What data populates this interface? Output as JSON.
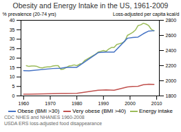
{
  "chart_data": {
    "type": "line",
    "title": "Obesity and Energy Intake in the US, 1961-2009",
    "ylabel": "% prevalence (20-74 yrs)",
    "y2label": "Loss-adjusted per capita kcal/d",
    "xlim": [
      1959,
      2011
    ],
    "xticks": [
      1960,
      1970,
      1980,
      1990,
      2000,
      2010
    ],
    "ylim": [
      0,
      40
    ],
    "yticks": [
      0,
      5,
      10,
      15,
      20,
      25,
      30,
      35,
      40
    ],
    "y2lim": [
      1800,
      2800
    ],
    "y2ticks": [
      1800,
      2000,
      2200,
      2400,
      2600,
      2800
    ],
    "legend": "bottom",
    "footnotes": [
      "CDC NHES and NHANES 1960-2008",
      "USDA ERS loss-adjusted food disappearance"
    ],
    "series": [
      {
        "name": "Obese (BMI >30)",
        "color": "#4472C4",
        "x": [
          1960,
          1962,
          1971,
          1974,
          1976,
          1980,
          1988,
          1991,
          1994,
          1999,
          2001,
          2003,
          2005,
          2007,
          2009
        ],
        "values": [
          13.4,
          13.3,
          14.5,
          14.6,
          15.1,
          15.1,
          22.9,
          23.2,
          23.2,
          30.5,
          30.9,
          31.1,
          32.9,
          34.3,
          34.5
        ]
      },
      {
        "name": "Very obese (BMI >40)",
        "color": "#C0504D",
        "x": [
          1960,
          1962,
          1971,
          1974,
          1976,
          1980,
          1988,
          1991,
          1994,
          1999,
          2001,
          2003,
          2005,
          2007,
          2009
        ],
        "values": [
          0.9,
          0.9,
          1.2,
          1.3,
          1.3,
          1.4,
          3.0,
          3.2,
          3.0,
          4.7,
          5.0,
          5.1,
          5.9,
          6.2,
          6.1
        ]
      },
      {
        "name": "Energy intake",
        "color": "#9BBB59",
        "axis": "y2",
        "x": [
          1961,
          1962,
          1963,
          1964,
          1965,
          1966,
          1967,
          1968,
          1969,
          1970,
          1971,
          1972,
          1973,
          1974,
          1975,
          1976,
          1977,
          1978,
          1979,
          1980,
          1981,
          1982,
          1983,
          1984,
          1985,
          1986,
          1987,
          1988,
          1989,
          1990,
          1991,
          1992,
          1993,
          1994,
          1995,
          1996,
          1997,
          1998,
          1999,
          2000,
          2001,
          2002,
          2003,
          2004,
          2005,
          2006,
          2007,
          2008,
          2009
        ],
        "values": [
          2200,
          2190,
          2195,
          2195,
          2190,
          2175,
          2170,
          2180,
          2185,
          2185,
          2195,
          2200,
          2200,
          2150,
          2155,
          2175,
          2195,
          2200,
          2210,
          2200,
          2220,
          2230,
          2270,
          2290,
          2310,
          2330,
          2350,
          2380,
          2390,
          2400,
          2390,
          2420,
          2440,
          2440,
          2480,
          2490,
          2500,
          2520,
          2600,
          2620,
          2640,
          2670,
          2730,
          2740,
          2760,
          2750,
          2730,
          2680,
          2660
        ]
      }
    ]
  }
}
